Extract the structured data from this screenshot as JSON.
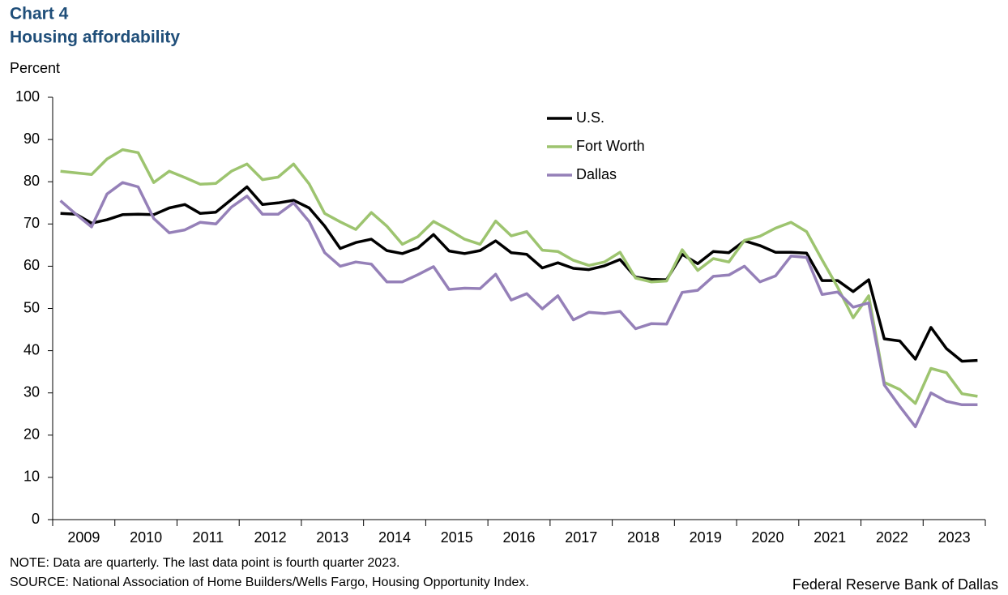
{
  "chart_data": {
    "type": "line",
    "title": "Chart 4",
    "subtitle": "Housing affordability",
    "y_label": "Percent",
    "note": "NOTE: Data are quarterly. The last data point is fourth quarter 2023.",
    "source": "SOURCE: National Association of Home Builders/Wells Fargo, Housing Opportunity Index.",
    "credit": "Federal Reserve Bank of Dallas",
    "categories": [
      "2009",
      null,
      null,
      null,
      "2010",
      null,
      null,
      null,
      "2011",
      null,
      null,
      null,
      "2012",
      null,
      null,
      null,
      "2013",
      null,
      null,
      null,
      "2014",
      null,
      null,
      null,
      "2015",
      null,
      null,
      null,
      "2016",
      null,
      null,
      null,
      "2017",
      null,
      null,
      null,
      "2018",
      null,
      null,
      null,
      "2019",
      null,
      null,
      null,
      "2020",
      null,
      null,
      null,
      "2021",
      null,
      null,
      null,
      "2022",
      null,
      null,
      null,
      "2023",
      null,
      null,
      null
    ],
    "ylim": [
      0,
      100
    ],
    "yticks": [
      0,
      10,
      20,
      30,
      40,
      50,
      60,
      70,
      80,
      90,
      100
    ],
    "grid": false,
    "legend": "top",
    "series": [
      {
        "name": "U.S.",
        "color": "#000000",
        "values": [
          72.5,
          72.3,
          70.2,
          71,
          72.2,
          72.3,
          72.2,
          73.8,
          74.6,
          72.5,
          72.8,
          75.8,
          78.8,
          74.6,
          75,
          75.6,
          73.8,
          69.5,
          64.2,
          65.6,
          66.4,
          63.7,
          63,
          64.3,
          67.5,
          63.6,
          63,
          63.7,
          66,
          63.2,
          62.8,
          59.6,
          60.8,
          59.5,
          59.2,
          60.1,
          61.6,
          57.4,
          56.9,
          56.8,
          62.8,
          60.6,
          63.5,
          63.2,
          66,
          64.9,
          63.3,
          63.3,
          63.1,
          56.6,
          56.6,
          54,
          56.8,
          42.8,
          42.3,
          38,
          45.5,
          40.5,
          37.5,
          37.7
        ]
      },
      {
        "name": "Fort Worth",
        "color": "#9dc46f",
        "values": [
          82.5,
          82.1,
          81.7,
          85.4,
          87.6,
          86.9,
          79.8,
          82.5,
          81,
          79.4,
          79.6,
          82.5,
          84.2,
          80.5,
          81.1,
          84.2,
          79.5,
          72.5,
          70.5,
          68.7,
          72.7,
          69.5,
          65.2,
          67,
          70.6,
          68.6,
          66.4,
          65.2,
          70.7,
          67.2,
          68.2,
          63.8,
          63.5,
          61.4,
          60.2,
          61,
          63.3,
          57.2,
          56.3,
          56.5,
          63.9,
          59,
          61.8,
          61,
          66.1,
          67.1,
          69,
          70.4,
          68.2,
          61.5,
          55,
          47.8,
          53,
          32.5,
          30.8,
          27.5,
          35.8,
          34.8,
          29.8,
          29.2
        ]
      },
      {
        "name": "Dallas",
        "color": "#9580b8",
        "values": [
          75.5,
          72.3,
          69.3,
          77.1,
          79.8,
          78.8,
          71.3,
          67.9,
          68.6,
          70.4,
          70,
          74,
          76.6,
          72.3,
          72.3,
          75,
          70.6,
          63.2,
          60,
          61,
          60.5,
          56.3,
          56.3,
          58,
          59.9,
          54.5,
          54.8,
          54.7,
          58.1,
          52,
          53.5,
          49.9,
          53,
          47.3,
          49.1,
          48.8,
          49.3,
          45.2,
          46.4,
          46.3,
          53.8,
          54.3,
          57.6,
          57.9,
          60,
          56.3,
          57.7,
          62.4,
          62.1,
          53.3,
          53.9,
          50.3,
          51.3,
          31.9,
          26.8,
          22,
          30,
          28,
          27.2,
          27.2
        ]
      }
    ]
  }
}
